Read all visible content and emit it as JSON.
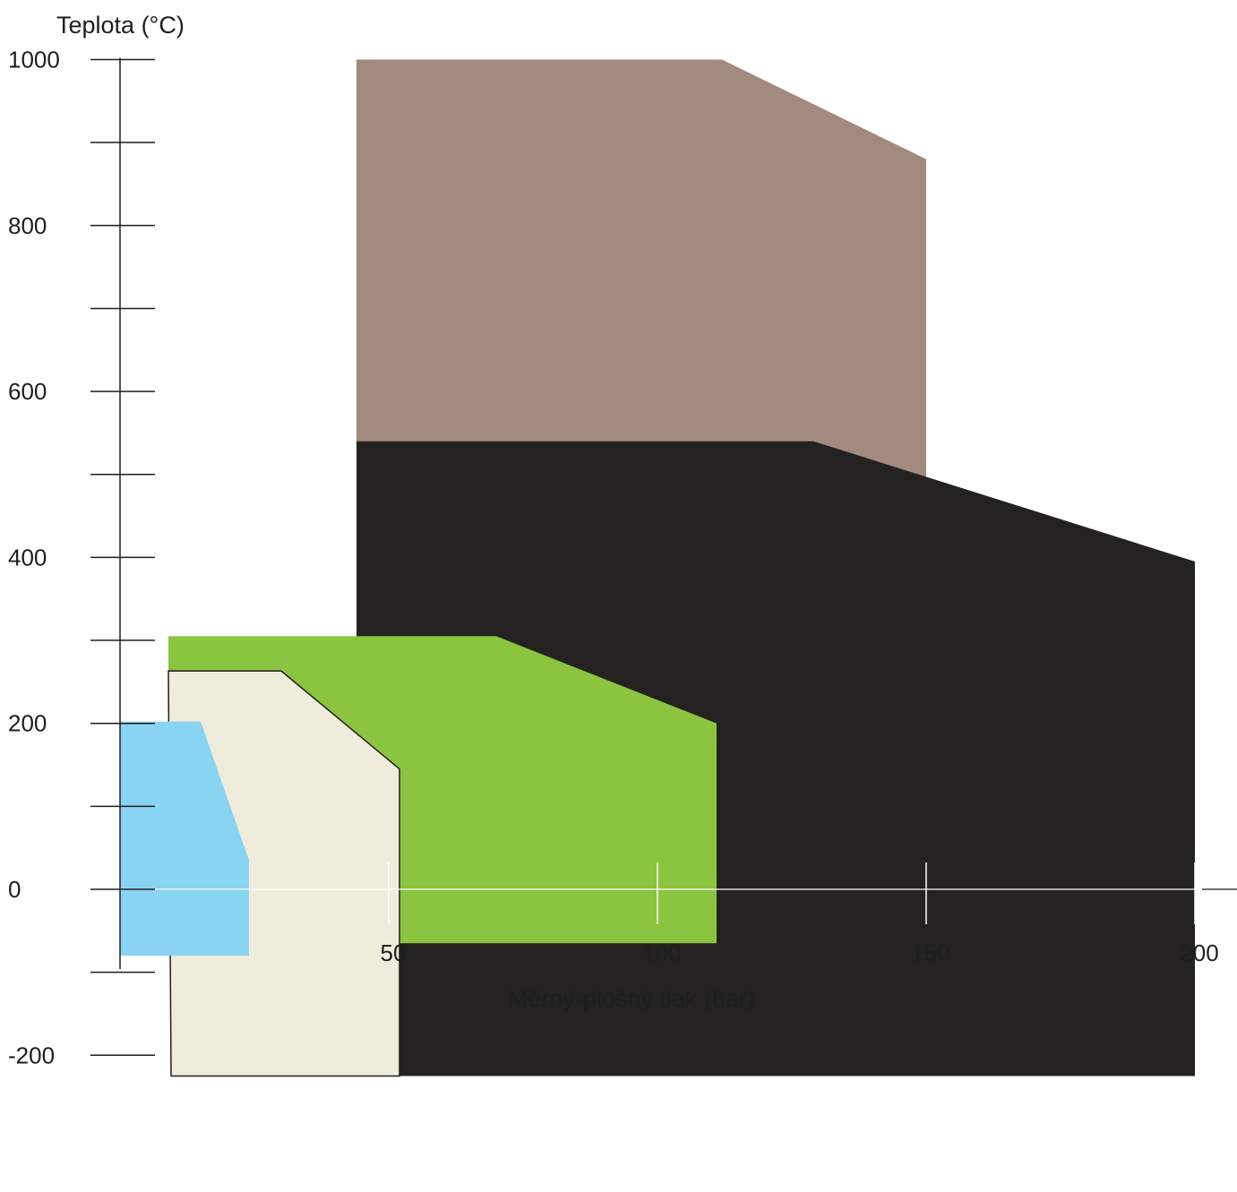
{
  "chart_data": {
    "type": "area",
    "title": "",
    "ylabel": "Teplota (°C)",
    "xlabel": "Měrný-plošný tlak (bar)",
    "xlim": [
      0,
      207
    ],
    "ylim": [
      -260,
      1000
    ],
    "x_ticks": [
      50,
      100,
      150,
      200
    ],
    "y_ticks": [
      -200,
      0,
      200,
      400,
      600,
      800,
      1000
    ],
    "y_minor_ticks": [
      -100,
      100,
      300,
      500,
      700,
      900
    ],
    "grid": false,
    "legend": "none",
    "regions": [
      {
        "color": "#a38a7e",
        "polygon": [
          [
            44,
            1000
          ],
          [
            112,
            1000
          ],
          [
            150,
            880
          ],
          [
            150,
            495
          ],
          [
            44,
            495
          ]
        ]
      },
      {
        "color": "#232220",
        "polygon": [
          [
            44,
            540
          ],
          [
            129,
            540
          ],
          [
            200,
            395
          ],
          [
            200,
            -225
          ],
          [
            44,
            -225
          ]
        ]
      },
      {
        "color": "#8bc43f",
        "polygon": [
          [
            9,
            305
          ],
          [
            70,
            305
          ],
          [
            111,
            200
          ],
          [
            111,
            -65
          ],
          [
            9,
            -65
          ]
        ]
      },
      {
        "color": "#f0ecdb",
        "outline": "#1e1e1e",
        "polygon": [
          [
            9,
            263
          ],
          [
            30,
            263
          ],
          [
            52,
            145
          ],
          [
            52,
            -225
          ],
          [
            9.5,
            -225
          ]
        ]
      },
      {
        "color": "#89d3f3",
        "polygon": [
          [
            0,
            202
          ],
          [
            15,
            202
          ],
          [
            24,
            35
          ],
          [
            24,
            -80
          ],
          [
            0,
            -80
          ]
        ]
      }
    ]
  }
}
